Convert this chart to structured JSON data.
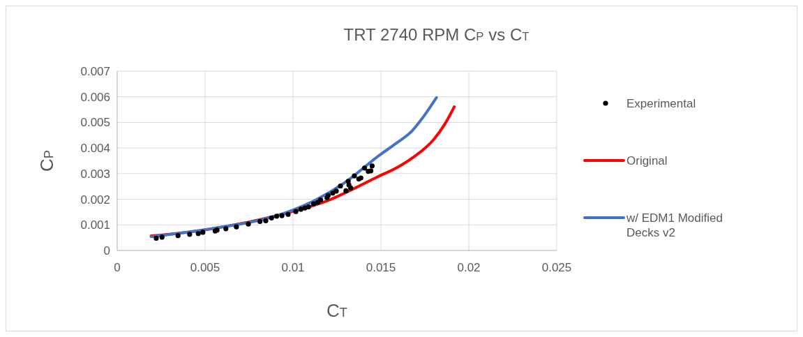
{
  "chart_data": {
    "type": "scatter",
    "title": "TRT 2740 RPM C$_{P}$ vs C$_{T}$",
    "xlabel": "C$_{T}$",
    "ylabel": "C$_{P}$",
    "xlim": [
      0,
      0.025
    ],
    "xticks": [
      0,
      0.005,
      0.01,
      0.015,
      0.02,
      0.025
    ],
    "ylim": [
      0,
      0.007
    ],
    "yticks": [
      0,
      0.001,
      0.002,
      0.003,
      0.004,
      0.005,
      0.006,
      0.007
    ],
    "grid": true,
    "legend": "right",
    "series": [
      {
        "name": "Experimental",
        "marker": "circle",
        "color": "#000000",
        "x": [
          0.00222,
          0.00255,
          0.00346,
          0.00412,
          0.00461,
          0.00487,
          0.00557,
          0.00568,
          0.00618,
          0.00678,
          0.00746,
          0.00812,
          0.00845,
          0.00878,
          0.00907,
          0.00937,
          0.00972,
          0.01016,
          0.01045,
          0.01068,
          0.01088,
          0.01117,
          0.01141,
          0.01157,
          0.01193,
          0.012,
          0.01226,
          0.01246,
          0.0127,
          0.01301,
          0.01314,
          0.01318,
          0.01328,
          0.01349,
          0.01374,
          0.01386,
          0.01407,
          0.01428,
          0.01443,
          0.0145
        ],
        "values": [
          0.00048,
          0.00052,
          0.00058,
          0.00063,
          0.00066,
          0.00071,
          0.00076,
          0.0008,
          0.00085,
          0.00092,
          0.00103,
          0.00113,
          0.00116,
          0.00127,
          0.00134,
          0.00136,
          0.00141,
          0.00152,
          0.00161,
          0.00166,
          0.0017,
          0.00182,
          0.00188,
          0.00197,
          0.00206,
          0.00215,
          0.00224,
          0.00232,
          0.00252,
          0.00233,
          0.0027,
          0.00256,
          0.00244,
          0.00291,
          0.00279,
          0.00283,
          0.00322,
          0.00309,
          0.00311,
          0.0033
        ]
      },
      {
        "name": "Original",
        "type": "line",
        "color": "#ff0000",
        "x": [
          0.00193,
          0.00496,
          0.00996,
          0.0118,
          0.01483,
          0.016,
          0.0168,
          0.018,
          0.01864,
          0.01917
        ],
        "values": [
          0.00057,
          0.0008,
          0.00152,
          0.0019,
          0.00288,
          0.00327,
          0.00362,
          0.00433,
          0.00494,
          0.00561
        ]
      },
      {
        "name": "w/ EDM1 Modified Decks v2",
        "type": "line",
        "color": "#4472c4",
        "x": [
          0.00193,
          0.00496,
          0.00996,
          0.01128,
          0.01286,
          0.01496,
          0.01588,
          0.0168,
          0.01733,
          0.01816
        ],
        "values": [
          0.00054,
          0.00081,
          0.00157,
          0.00197,
          0.00261,
          0.00374,
          0.00419,
          0.00469,
          0.00514,
          0.00597
        ]
      }
    ]
  }
}
